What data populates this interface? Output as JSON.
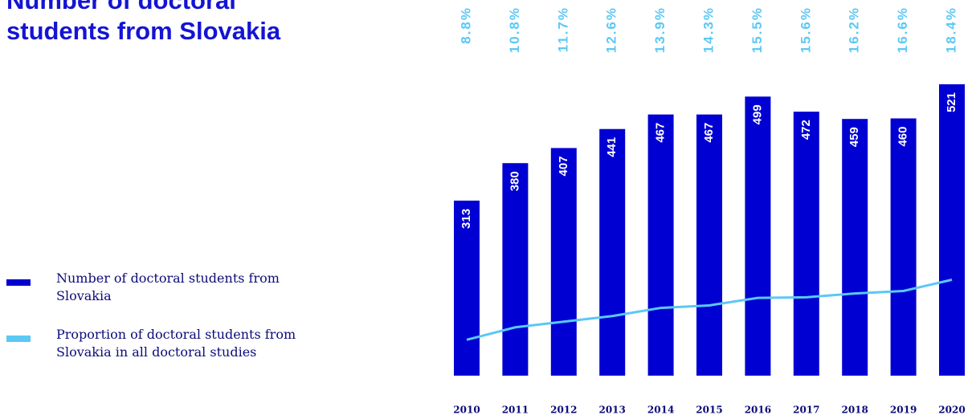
{
  "chart_data": {
    "type": "bar",
    "title": "Number of doctoral students from Slovakia",
    "categories": [
      "2010",
      "2011",
      "2012",
      "2013",
      "2014",
      "2015",
      "2016",
      "2017",
      "2018",
      "2019",
      "2020"
    ],
    "series": [
      {
        "name": "Number of doctoral students from Slovakia",
        "color": "#0000d2",
        "values": [
          313,
          380,
          407,
          441,
          467,
          467,
          499,
          472,
          459,
          460,
          521
        ]
      },
      {
        "name": "Proportion of doctoral students from Slovakia in all doctoral studies",
        "color": "#5bc8f5",
        "axis": "y2",
        "values": [
          8.8,
          10.8,
          11.7,
          12.6,
          13.9,
          14.3,
          15.5,
          15.6,
          16.2,
          16.6,
          18.4
        ],
        "value_labels": [
          "8.8%",
          "10.8%",
          "11.7%",
          "12.6%",
          "13.9%",
          "14.3%",
          "15.5%",
          "15.6%",
          "16.2%",
          "16.6%",
          "18.4%"
        ]
      }
    ]
  }
}
